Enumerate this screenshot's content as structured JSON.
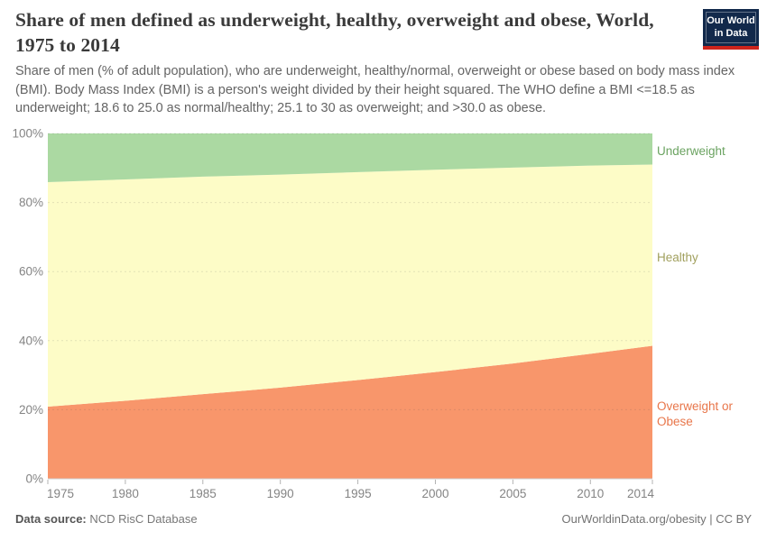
{
  "header": {
    "title": "Share of men defined as underweight, healthy, overweight and obese, World, 1975 to 2014",
    "subtitle": "Share of men (% of adult population), who are underweight, healthy/normal, overweight or obese based on body mass index (BMI). Body Mass Index (BMI) is a person's weight divided by their height squared. The WHO define a BMI <=18.5 as underweight; 18.6 to 25.0 as normal/healthy; 25.1 to 30 as overweight; and >30.0 as obese.",
    "logo": {
      "line1": "Our World",
      "line2": "in Data",
      "bg_color": "#12294B",
      "stripe_color": "#CE241C"
    }
  },
  "chart_data": {
    "type": "area",
    "stacked": true,
    "title": "Share of men defined as underweight, healthy, overweight and obese, World, 1975 to 2014",
    "x": [
      1975,
      1980,
      1985,
      1990,
      1995,
      2000,
      2005,
      2010,
      2014
    ],
    "series": [
      {
        "name": "Overweight or Obese",
        "color": "#F8966B",
        "label_color": "#E8764A",
        "values": [
          20.9,
          22.6,
          24.5,
          26.4,
          28.6,
          30.9,
          33.4,
          36.2,
          38.5
        ]
      },
      {
        "name": "Healthy",
        "color": "#FDFCC7",
        "label_color": "#A1A05E",
        "values": [
          65.0,
          64.1,
          63.0,
          61.7,
          60.2,
          58.6,
          56.7,
          54.5,
          52.5
        ]
      },
      {
        "name": "Underweight",
        "color": "#ABD9A2",
        "label_color": "#6BA361",
        "values": [
          14.1,
          13.3,
          12.5,
          11.9,
          11.2,
          10.5,
          9.9,
          9.3,
          9.0
        ]
      }
    ],
    "xlabel": "",
    "ylabel": "",
    "ylim": [
      0,
      100
    ],
    "yticks": [
      0,
      20,
      40,
      60,
      80,
      100
    ],
    "ytick_format": "{v}%",
    "xticks": [
      1975,
      1980,
      1985,
      1990,
      1995,
      2000,
      2005,
      2010,
      2014
    ],
    "grid": "dashed-horizontal",
    "legend_position": "right-edge-labels"
  },
  "footer": {
    "source_label": "Data source:",
    "source_value": " NCD RisC Database",
    "link": "OurWorldinData.org/obesity | CC BY"
  }
}
